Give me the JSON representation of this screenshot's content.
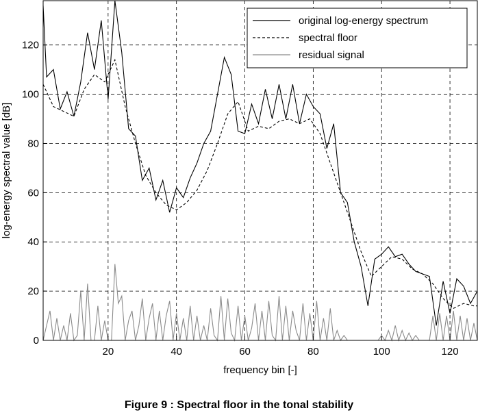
{
  "chart_data": {
    "type": "line",
    "xlabel": "frequency bin [-]",
    "ylabel": "log-energy spectral value [dB]",
    "xlim": [
      1,
      128
    ],
    "ylim": [
      0,
      138
    ],
    "xticks": [
      20,
      40,
      60,
      80,
      100,
      120
    ],
    "yticks": [
      0,
      20,
      40,
      60,
      80,
      100,
      120
    ],
    "grid": true,
    "legend_position": "top-right",
    "series": [
      {
        "name": "original log-energy spectrum",
        "color": "#000000",
        "style": "solid",
        "x": [
          1,
          2,
          4,
          6,
          8,
          10,
          12,
          14,
          16,
          18,
          20,
          22,
          24,
          26,
          28,
          30,
          32,
          34,
          36,
          38,
          40,
          42,
          44,
          46,
          48,
          50,
          52,
          54,
          56,
          58,
          60,
          62,
          64,
          66,
          68,
          70,
          72,
          74,
          76,
          78,
          80,
          82,
          84,
          86,
          88,
          90,
          92,
          94,
          96,
          98,
          100,
          102,
          104,
          106,
          108,
          110,
          112,
          114,
          116,
          118,
          120,
          122,
          124,
          126,
          128
        ],
        "values": [
          136,
          107,
          110,
          94,
          101,
          91,
          105,
          125,
          110,
          130,
          98,
          138,
          117,
          86,
          83,
          65,
          70,
          57,
          65,
          52,
          62,
          58,
          66,
          72,
          80,
          85,
          100,
          115,
          108,
          85,
          84,
          96,
          88,
          102,
          90,
          104,
          90,
          104,
          88,
          100,
          95,
          92,
          78,
          88,
          60,
          56,
          40,
          30,
          14,
          33,
          35,
          38,
          34,
          35,
          31,
          28,
          27,
          26,
          6,
          24,
          11,
          25,
          22,
          15,
          20
        ]
      },
      {
        "name": "spectral floor",
        "color": "#000000",
        "style": "dashed",
        "x": [
          1,
          4,
          7,
          10,
          13,
          16,
          19,
          22,
          25,
          28,
          31,
          34,
          37,
          40,
          43,
          46,
          49,
          52,
          55,
          58,
          61,
          64,
          67,
          70,
          73,
          76,
          79,
          82,
          85,
          88,
          91,
          94,
          97,
          100,
          103,
          106,
          109,
          112,
          115,
          118,
          121,
          124,
          127,
          128
        ],
        "values": [
          104,
          95,
          93,
          91,
          102,
          108,
          105,
          114,
          95,
          80,
          67,
          60,
          55,
          53,
          56,
          61,
          69,
          80,
          92,
          97,
          85,
          87,
          86,
          89,
          90,
          88,
          90,
          84,
          72,
          60,
          48,
          36,
          26,
          30,
          34,
          33,
          29,
          27,
          23,
          17,
          13,
          15,
          14,
          14
        ]
      },
      {
        "name": "residual signal",
        "color": "#8a8a8a",
        "style": "solid",
        "x": [
          1,
          2,
          3,
          4,
          5,
          6,
          7,
          8,
          9,
          10,
          11,
          12,
          13,
          14,
          15,
          16,
          17,
          18,
          19,
          20,
          21,
          22,
          23,
          24,
          25,
          26,
          27,
          28,
          29,
          30,
          31,
          32,
          33,
          34,
          35,
          36,
          37,
          38,
          39,
          40,
          41,
          42,
          43,
          44,
          45,
          46,
          47,
          48,
          49,
          50,
          51,
          52,
          53,
          54,
          55,
          56,
          57,
          58,
          59,
          60,
          61,
          62,
          63,
          64,
          65,
          66,
          67,
          68,
          69,
          70,
          71,
          72,
          73,
          74,
          75,
          76,
          77,
          78,
          79,
          80,
          81,
          82,
          83,
          84,
          85,
          86,
          87,
          88,
          89,
          90,
          91,
          92,
          93,
          94,
          95,
          96,
          97,
          98,
          99,
          100,
          101,
          102,
          103,
          104,
          105,
          106,
          107,
          108,
          109,
          110,
          111,
          112,
          113,
          114,
          115,
          116,
          117,
          118,
          119,
          120,
          121,
          122,
          123,
          124,
          125,
          126,
          127,
          128
        ],
        "values": [
          0,
          6,
          12,
          0,
          9,
          0,
          6,
          0,
          11,
          0,
          2,
          20,
          0,
          23,
          0,
          0,
          14,
          0,
          8,
          0,
          0,
          31,
          15,
          18,
          0,
          8,
          12,
          0,
          6,
          17,
          0,
          9,
          15,
          0,
          12,
          0,
          10,
          16,
          0,
          11,
          0,
          9,
          0,
          14,
          0,
          10,
          0,
          6,
          0,
          13,
          2,
          0,
          18,
          0,
          17,
          3,
          0,
          14,
          0,
          10,
          0,
          5,
          15,
          0,
          12,
          0,
          16,
          2,
          0,
          18,
          0,
          14,
          0,
          12,
          4,
          0,
          15,
          0,
          11,
          0,
          16,
          0,
          9,
          0,
          13,
          0,
          4,
          0,
          2,
          0,
          0,
          0,
          0,
          0,
          0,
          0,
          0,
          0,
          0,
          2,
          0,
          4,
          0,
          6,
          0,
          4,
          0,
          3,
          0,
          2,
          0,
          0,
          0,
          0,
          10,
          0,
          11,
          0,
          10,
          0,
          12,
          0,
          10,
          0,
          9,
          0,
          7,
          0
        ]
      }
    ]
  },
  "caption": "Figure 9 : Spectral floor in the tonal stability"
}
